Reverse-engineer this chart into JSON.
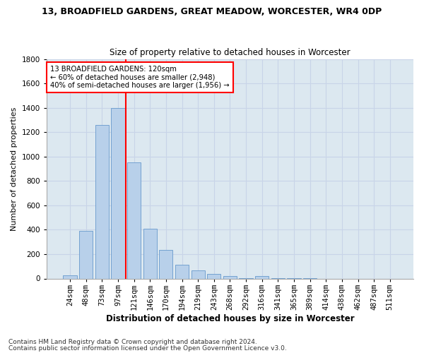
{
  "title1": "13, BROADFIELD GARDENS, GREAT MEADOW, WORCESTER, WR4 0DP",
  "title2": "Size of property relative to detached houses in Worcester",
  "xlabel": "Distribution of detached houses by size in Worcester",
  "ylabel": "Number of detached properties",
  "footnote1": "Contains HM Land Registry data © Crown copyright and database right 2024.",
  "footnote2": "Contains public sector information licensed under the Open Government Licence v3.0.",
  "bar_labels": [
    "24sqm",
    "48sqm",
    "73sqm",
    "97sqm",
    "121sqm",
    "146sqm",
    "170sqm",
    "194sqm",
    "219sqm",
    "243sqm",
    "268sqm",
    "292sqm",
    "316sqm",
    "341sqm",
    "365sqm",
    "389sqm",
    "414sqm",
    "438sqm",
    "462sqm",
    "487sqm",
    "511sqm"
  ],
  "bar_values": [
    25,
    390,
    1260,
    1400,
    950,
    410,
    235,
    115,
    65,
    40,
    20,
    5,
    20,
    5,
    5,
    5,
    0,
    0,
    0,
    0,
    0
  ],
  "bar_color": "#b8d0ea",
  "bar_edge_color": "#6699cc",
  "grid_color": "#c8d4e8",
  "background_color": "#dce8f0",
  "vline_color": "red",
  "vline_x_index": 4,
  "annotation_text": "13 BROADFIELD GARDENS: 120sqm\n← 60% of detached houses are smaller (2,948)\n40% of semi-detached houses are larger (1,956) →",
  "annotation_box_color": "white",
  "annotation_box_edge": "red",
  "ylim": [
    0,
    1800
  ],
  "yticks": [
    0,
    200,
    400,
    600,
    800,
    1000,
    1200,
    1400,
    1600,
    1800
  ],
  "title1_fontsize": 9,
  "title2_fontsize": 8.5,
  "xlabel_fontsize": 8.5,
  "ylabel_fontsize": 8,
  "tick_fontsize": 7.5,
  "footnote_fontsize": 6.5
}
